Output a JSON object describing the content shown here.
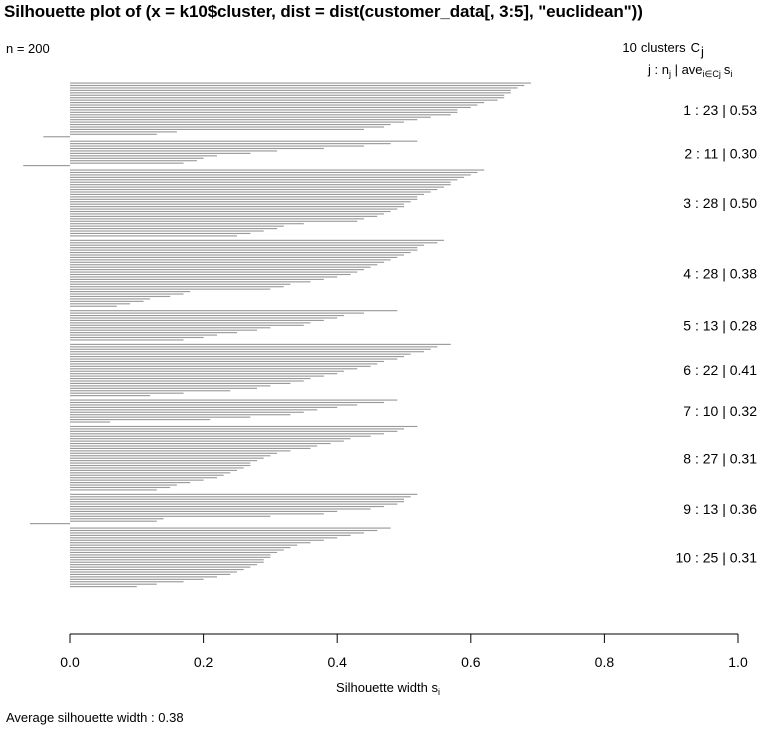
{
  "chart_data": {
    "type": "bar",
    "orientation": "horizontal",
    "title": "Silhouette plot of (x = k10$cluster, dist = dist(customer_data[, 3:5], \"euclidean\"))",
    "n_label": "n = 200",
    "legend_header": {
      "count": "10",
      "word": "clusters",
      "C": "C",
      "C_sub": "j",
      "j": "j",
      "colon": " : ",
      "n": "n",
      "n_sub": "j",
      "bar": " | ",
      "ave": "ave",
      "ave_sub": "i∈Cj",
      "s": "s",
      "s_sub": "i"
    },
    "xlabel": "Silhouette width s",
    "xlabel_sub": "i",
    "xlim": [
      0.0,
      1.0
    ],
    "xticks": [
      "0.0",
      "0.2",
      "0.4",
      "0.6",
      "0.8",
      "1.0"
    ],
    "average_text": "Average silhouette width :  0.38",
    "clusters": [
      {
        "j": "1",
        "n": "23",
        "ave": "0.53",
        "values": [
          0.69,
          0.68,
          0.67,
          0.66,
          0.66,
          0.65,
          0.65,
          0.64,
          0.62,
          0.61,
          0.6,
          0.58,
          0.58,
          0.57,
          0.54,
          0.52,
          0.5,
          0.48,
          0.47,
          0.44,
          0.16,
          0.13,
          -0.04
        ]
      },
      {
        "j": "2",
        "n": "11",
        "ave": "0.30",
        "values": [
          0.52,
          0.48,
          0.44,
          0.38,
          0.31,
          0.27,
          0.22,
          0.2,
          0.19,
          0.17,
          -0.07
        ]
      },
      {
        "j": "3",
        "n": "28",
        "ave": "0.50",
        "values": [
          0.62,
          0.61,
          0.6,
          0.59,
          0.58,
          0.57,
          0.57,
          0.56,
          0.55,
          0.54,
          0.53,
          0.52,
          0.52,
          0.51,
          0.5,
          0.5,
          0.49,
          0.48,
          0.47,
          0.46,
          0.44,
          0.43,
          0.35,
          0.32,
          0.31,
          0.29,
          0.27,
          0.25
        ]
      },
      {
        "j": "4",
        "n": "28",
        "ave": "0.38",
        "values": [
          0.56,
          0.55,
          0.53,
          0.52,
          0.52,
          0.51,
          0.5,
          0.49,
          0.48,
          0.47,
          0.46,
          0.45,
          0.44,
          0.43,
          0.42,
          0.4,
          0.38,
          0.36,
          0.33,
          0.32,
          0.3,
          0.18,
          0.17,
          0.15,
          0.12,
          0.11,
          0.09,
          0.07
        ]
      },
      {
        "j": "5",
        "n": "13",
        "ave": "0.28",
        "values": [
          0.49,
          0.44,
          0.41,
          0.4,
          0.38,
          0.36,
          0.35,
          0.3,
          0.28,
          0.25,
          0.22,
          0.2,
          0.17
        ]
      },
      {
        "j": "6",
        "n": "22",
        "ave": "0.41",
        "values": [
          0.57,
          0.55,
          0.54,
          0.53,
          0.51,
          0.5,
          0.49,
          0.47,
          0.46,
          0.45,
          0.43,
          0.41,
          0.4,
          0.38,
          0.36,
          0.35,
          0.33,
          0.3,
          0.28,
          0.24,
          0.17,
          0.12
        ]
      },
      {
        "j": "7",
        "n": "10",
        "ave": "0.32",
        "values": [
          0.49,
          0.47,
          0.43,
          0.4,
          0.37,
          0.35,
          0.33,
          0.27,
          0.21,
          0.06
        ]
      },
      {
        "j": "8",
        "n": "27",
        "ave": "0.31",
        "values": [
          0.52,
          0.5,
          0.49,
          0.47,
          0.45,
          0.42,
          0.41,
          0.39,
          0.37,
          0.36,
          0.33,
          0.31,
          0.3,
          0.29,
          0.28,
          0.27,
          0.27,
          0.26,
          0.25,
          0.24,
          0.23,
          0.22,
          0.2,
          0.18,
          0.16,
          0.15,
          0.13
        ]
      },
      {
        "j": "9",
        "n": "13",
        "ave": "0.36",
        "values": [
          0.52,
          0.51,
          0.5,
          0.5,
          0.49,
          0.47,
          0.45,
          0.4,
          0.38,
          0.3,
          0.14,
          0.13,
          -0.06
        ]
      },
      {
        "j": "10",
        "n": "25",
        "ave": "0.31",
        "values": [
          0.48,
          0.46,
          0.44,
          0.42,
          0.4,
          0.38,
          0.36,
          0.34,
          0.33,
          0.32,
          0.31,
          0.3,
          0.3,
          0.29,
          0.29,
          0.28,
          0.27,
          0.26,
          0.25,
          0.24,
          0.22,
          0.2,
          0.17,
          0.13,
          0.1
        ]
      }
    ]
  }
}
